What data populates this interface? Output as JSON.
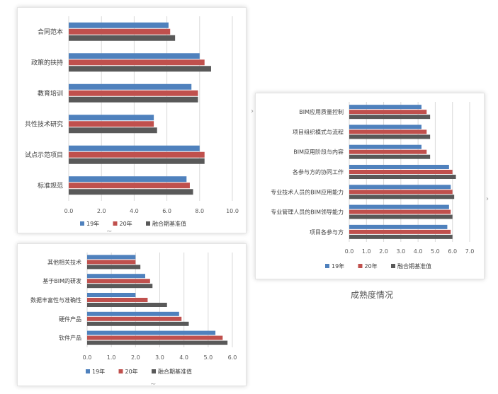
{
  "caption": "成熟度情况",
  "chart_data": [
    {
      "type": "bar",
      "orientation": "horizontal",
      "title": "",
      "categories": [
        "合同范本",
        "政策的扶持",
        "教育培训",
        "共性技术研究",
        "试点示范项目",
        "标准规范"
      ],
      "series": [
        {
          "name": "19年",
          "color": "#4F81BD",
          "values": [
            6.1,
            8.0,
            7.5,
            5.2,
            8.0,
            7.2
          ]
        },
        {
          "name": "20年",
          "color": "#C0504D",
          "values": [
            6.2,
            8.3,
            7.9,
            5.2,
            8.3,
            7.4
          ]
        },
        {
          "name": "融合期基准值",
          "color": "#595959",
          "values": [
            6.5,
            8.7,
            7.9,
            5.4,
            8.3,
            7.6
          ]
        }
      ],
      "xlim": [
        0,
        10
      ],
      "xticks": [
        "0.0",
        "2.0",
        "4.0",
        "6.0",
        "8.0",
        "10.0"
      ],
      "grid": true,
      "legend_position": "bottom"
    },
    {
      "type": "bar",
      "orientation": "horizontal",
      "title": "",
      "categories": [
        "BIM应用质量控制",
        "项目组织模式与流程",
        "BIM应用阶段与内容",
        "各参与方的协同工作",
        "专业技术人员的BIM应用能力",
        "专业管理人员的BIM领导能力",
        "项目各参与方"
      ],
      "series": [
        {
          "name": "19年",
          "color": "#4F81BD",
          "values": [
            4.2,
            4.2,
            4.2,
            5.8,
            5.9,
            5.8,
            5.7
          ]
        },
        {
          "name": "20年",
          "color": "#C0504D",
          "values": [
            4.5,
            4.5,
            4.5,
            6.0,
            6.0,
            5.9,
            5.9
          ]
        },
        {
          "name": "融合期基准值",
          "color": "#595959",
          "values": [
            4.7,
            4.7,
            4.7,
            6.2,
            6.1,
            6.0,
            6.0
          ]
        }
      ],
      "xlim": [
        0,
        7
      ],
      "xticks": [
        "0.0",
        "1.0",
        "2.0",
        "3.0",
        "4.0",
        "5.0",
        "6.0",
        "7.0"
      ],
      "grid": true,
      "legend_position": "bottom"
    },
    {
      "type": "bar",
      "orientation": "horizontal",
      "title": "",
      "categories": [
        "其他相关技术",
        "基于BIM的研发",
        "数据丰富性与准确性",
        "硬件产品",
        "软件产品"
      ],
      "series": [
        {
          "name": "19年",
          "color": "#4F81BD",
          "values": [
            2.0,
            2.4,
            2.0,
            3.8,
            5.3
          ]
        },
        {
          "name": "20年",
          "color": "#C0504D",
          "values": [
            2.0,
            2.6,
            2.5,
            3.9,
            5.6
          ]
        },
        {
          "name": "融合期基准值",
          "color": "#595959",
          "values": [
            2.2,
            2.7,
            3.3,
            4.2,
            5.8
          ]
        }
      ],
      "xlim": [
        0,
        6
      ],
      "xticks": [
        "0.0",
        "1.0",
        "2.0",
        "3.0",
        "4.0",
        "5.0",
        "6.0"
      ],
      "grid": true,
      "legend_position": "bottom"
    }
  ]
}
